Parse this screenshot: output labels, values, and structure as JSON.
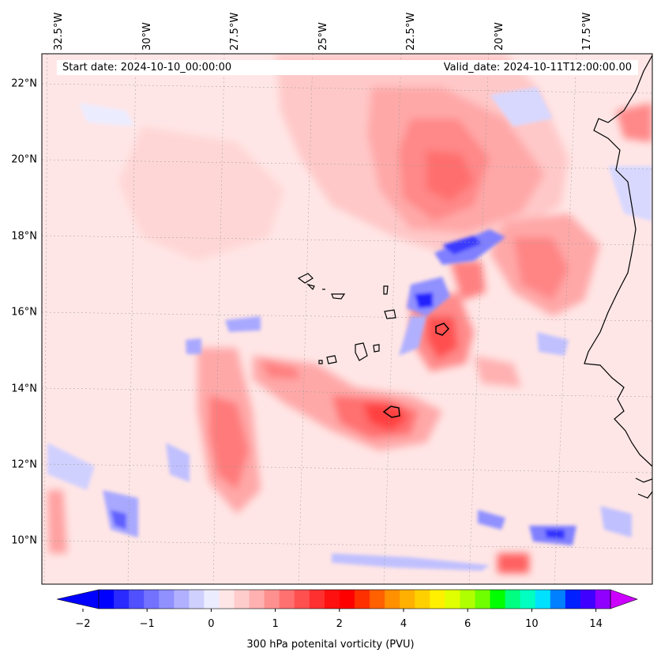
{
  "header": {
    "start_date": "Start date: 2024-10-10_00:00:00",
    "valid_date": "Valid_date: 2024-10-11T12:00:00.00"
  },
  "map": {
    "lat_labels": [
      {
        "label": "22°N",
        "lat": 22
      },
      {
        "label": "20°N",
        "lat": 20
      },
      {
        "label": "18°N",
        "lat": 18
      },
      {
        "label": "16°N",
        "lat": 16
      },
      {
        "label": "14°N",
        "lat": 14
      },
      {
        "label": "12°N",
        "lat": 12
      },
      {
        "label": "10°N",
        "lat": 10
      }
    ],
    "lon_labels": [
      {
        "label": "32.5°W",
        "lon": -32.5
      },
      {
        "label": "30°W",
        "lon": -30
      },
      {
        "label": "27.5°W",
        "lon": -27.5
      },
      {
        "label": "25°W",
        "lon": -25
      },
      {
        "label": "22.5°W",
        "lon": -22.5
      },
      {
        "label": "20°W",
        "lon": -20
      },
      {
        "label": "17.5°W",
        "lon": -17.5
      }
    ],
    "background_color": "#ffe6e6",
    "coastline_color": "#000000"
  },
  "colorbar": {
    "title": "300 hPa potenital vorticity (PVU)",
    "tick_labels": [
      "−2",
      "−1",
      "0",
      "1",
      "2",
      "4",
      "6",
      "10",
      "14"
    ],
    "colors": [
      "#0000ff",
      "#2a2aff",
      "#5050ff",
      "#7272ff",
      "#9090ff",
      "#b0b0ff",
      "#d0d0ff",
      "#ececff",
      "#ffe6e6",
      "#ffcccc",
      "#ffb0b0",
      "#ff9090",
      "#ff7070",
      "#ff5050",
      "#ff3030",
      "#ff1010",
      "#ff0000",
      "#ff3000",
      "#ff6000",
      "#ff9000",
      "#ffb000",
      "#ffd000",
      "#fff000",
      "#e0ff00",
      "#b0ff00",
      "#70ff00",
      "#00ff00",
      "#00ff80",
      "#00ffc0",
      "#00e0ff",
      "#0080ff",
      "#0020ff",
      "#4000ff",
      "#9000ff"
    ],
    "under_color": "#0000ff",
    "over_color": "#cc00ff"
  }
}
